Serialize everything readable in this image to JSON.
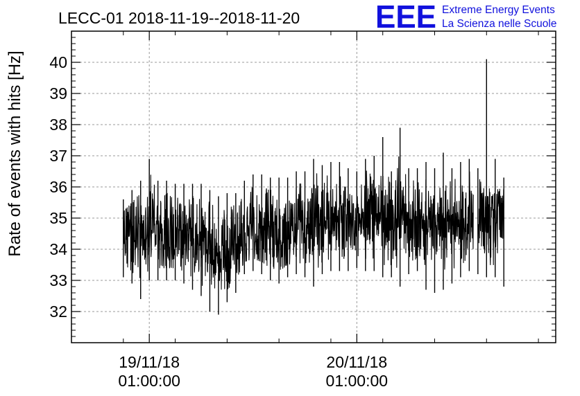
{
  "chart_data": {
    "type": "line",
    "title": "LECC-01 2018-11-19--2018-11-20",
    "ylabel": "Rate of events with hits [Hz]",
    "xlabel": "",
    "ylim": [
      31,
      41
    ],
    "yticks": [
      32,
      33,
      34,
      35,
      36,
      37,
      38,
      39,
      40
    ],
    "xlim": [
      "2018-11-18 16:00:00",
      "2018-11-21 00:00:00"
    ],
    "xticks": [
      {
        "value": "2018-11-19 01:00:00",
        "label_date": "19/11/18",
        "label_time": "01:00:00"
      },
      {
        "value": "2018-11-20 01:00:00",
        "label_date": "20/11/18",
        "label_time": "01:00:00"
      }
    ],
    "grid": true,
    "series": [
      {
        "color": "#000000",
        "x": [
          "2018-11-18 22:00",
          "2018-11-18 23:00",
          "2018-11-19 00:00",
          "2018-11-19 01:00",
          "2018-11-19 02:00",
          "2018-11-19 03:00",
          "2018-11-19 04:00",
          "2018-11-19 05:00",
          "2018-11-19 06:00",
          "2018-11-19 07:00",
          "2018-11-19 08:00",
          "2018-11-19 09:00",
          "2018-11-19 10:00",
          "2018-11-19 11:00",
          "2018-11-19 12:00",
          "2018-11-19 13:00",
          "2018-11-19 14:00",
          "2018-11-19 15:00",
          "2018-11-19 16:00",
          "2018-11-19 17:00",
          "2018-11-19 18:00",
          "2018-11-19 19:00",
          "2018-11-19 20:00",
          "2018-11-19 21:00",
          "2018-11-19 22:00",
          "2018-11-19 23:00",
          "2018-11-20 00:00",
          "2018-11-20 01:00",
          "2018-11-20 02:00",
          "2018-11-20 03:00",
          "2018-11-20 04:00",
          "2018-11-20 05:00",
          "2018-11-20 06:00",
          "2018-11-20 07:00",
          "2018-11-20 08:00",
          "2018-11-20 09:00",
          "2018-11-20 10:00",
          "2018-11-20 11:00",
          "2018-11-20 12:00",
          "2018-11-20 13:00",
          "2018-11-20 14:00",
          "2018-11-20 15:00",
          "2018-11-20 16:00",
          "2018-11-20 17:00",
          "2018-11-20 18:00"
        ],
        "mean": [
          34.6,
          34.5,
          34.5,
          34.6,
          34.6,
          34.5,
          34.4,
          34.3,
          34.3,
          34.1,
          34.0,
          33.9,
          34.0,
          34.2,
          34.5,
          34.7,
          34.6,
          34.5,
          34.5,
          34.6,
          34.7,
          34.7,
          34.8,
          34.8,
          34.9,
          35.0,
          35.0,
          34.9,
          35.1,
          35.2,
          35.0,
          35.0,
          35.1,
          34.9,
          34.8,
          34.8,
          34.7,
          34.7,
          34.8,
          34.9,
          35.0,
          35.0,
          35.0,
          35.0,
          35.0
        ],
        "min": [
          33.1,
          32.9,
          32.4,
          33.0,
          33.0,
          33.0,
          33.0,
          32.9,
          32.7,
          32.5,
          32.0,
          31.9,
          32.3,
          32.6,
          33.2,
          33.3,
          33.2,
          33.0,
          32.9,
          33.1,
          33.2,
          33.1,
          32.8,
          33.2,
          33.3,
          33.3,
          33.3,
          33.4,
          33.3,
          33.3,
          33.1,
          33.1,
          32.8,
          33.2,
          33.3,
          32.7,
          32.6,
          32.7,
          32.9,
          33.1,
          33.3,
          33.2,
          33.1,
          33.1,
          32.8
        ],
        "max": [
          35.6,
          35.9,
          36.2,
          36.9,
          36.2,
          36.2,
          36.1,
          36.1,
          36.1,
          36.1,
          35.9,
          35.7,
          35.8,
          35.8,
          36.2,
          36.4,
          36.4,
          36.3,
          36.3,
          36.3,
          36.5,
          36.5,
          36.9,
          36.7,
          36.8,
          36.8,
          36.6,
          36.5,
          36.9,
          37.0,
          37.6,
          36.5,
          37.9,
          36.6,
          36.6,
          36.8,
          36.6,
          37.1,
          36.6,
          36.8,
          36.9,
          36.6,
          40.1,
          36.9,
          36.3
        ],
        "gap": [
          "2018-11-20 14:30",
          "2018-11-20 15:00"
        ]
      }
    ]
  },
  "logo": {
    "mark": "EEE",
    "line1": "Extreme Energy Events",
    "line2": "La Scienza nelle Scuole",
    "color": "#1111dd"
  }
}
